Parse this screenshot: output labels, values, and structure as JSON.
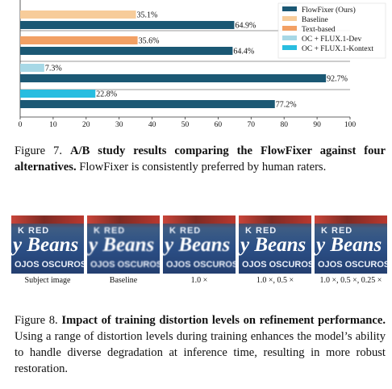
{
  "chart_data": {
    "type": "bar",
    "orientation": "horizontal",
    "xlim": [
      0,
      100
    ],
    "xticks": [
      "0",
      "10",
      "20",
      "30",
      "40",
      "50",
      "60",
      "70",
      "80",
      "90",
      "100"
    ],
    "legend_position": "top-right",
    "legend": [
      {
        "name": "FlowFixer (Ours)",
        "color": "#1b5874"
      },
      {
        "name": "Baseline",
        "color": "#f7cc9a"
      },
      {
        "name": "Text-based",
        "color": "#f2a064"
      },
      {
        "name": "OC + FLUX.1-Dev",
        "color": "#a7d8e6"
      },
      {
        "name": "OC + FLUX.1-Kontext",
        "color": "#28bde0"
      }
    ],
    "groups": [
      {
        "competitor": "Baseline",
        "competitor_value": 35.1,
        "competitor_label": "35.1%",
        "competitor_color": "#f7cc9a",
        "ours_value": 64.9,
        "ours_label": "64.9%"
      },
      {
        "competitor": "Text-based",
        "competitor_value": 35.6,
        "competitor_label": "35.6%",
        "competitor_color": "#f2a064",
        "ours_value": 64.4,
        "ours_label": "64.4%"
      },
      {
        "competitor": "OC + FLUX.1-Dev",
        "competitor_value": 7.3,
        "competitor_label": "7.3%",
        "competitor_color": "#a7d8e6",
        "ours_value": 92.7,
        "ours_label": "92.7%"
      },
      {
        "competitor": "OC + FLUX.1-Kontext",
        "competitor_value": 22.8,
        "competitor_label": "22.8%",
        "competitor_color": "#28bde0",
        "ours_value": 77.2,
        "ours_label": "77.2%"
      }
    ],
    "ours_color": "#1b5874"
  },
  "fig7": {
    "prefix": "Figure 7.",
    "title": "A/B study results comparing the FlowFixer against four alternatives.",
    "body": "FlowFixer is consistently preferred by human raters."
  },
  "fig8": {
    "prefix": "Figure 8.",
    "title": "Impact of training distortion levels on refinement performance.",
    "body": "Using a range of distortion levels during training enhances the model’s ability to handle diverse degradation at inference time, resulting in more robust restoration.",
    "photo_text": {
      "line1": "K RED",
      "line2": "y Beans",
      "line3": "OJOS OSCUROS"
    },
    "panels": [
      {
        "label": "Subject image"
      },
      {
        "label": "Baseline"
      },
      {
        "label": "1.0 ×"
      },
      {
        "label": "1.0 ×, 0.5 ×"
      },
      {
        "label": "1.0 ×, 0.5 ×, 0.25 ×"
      }
    ]
  }
}
